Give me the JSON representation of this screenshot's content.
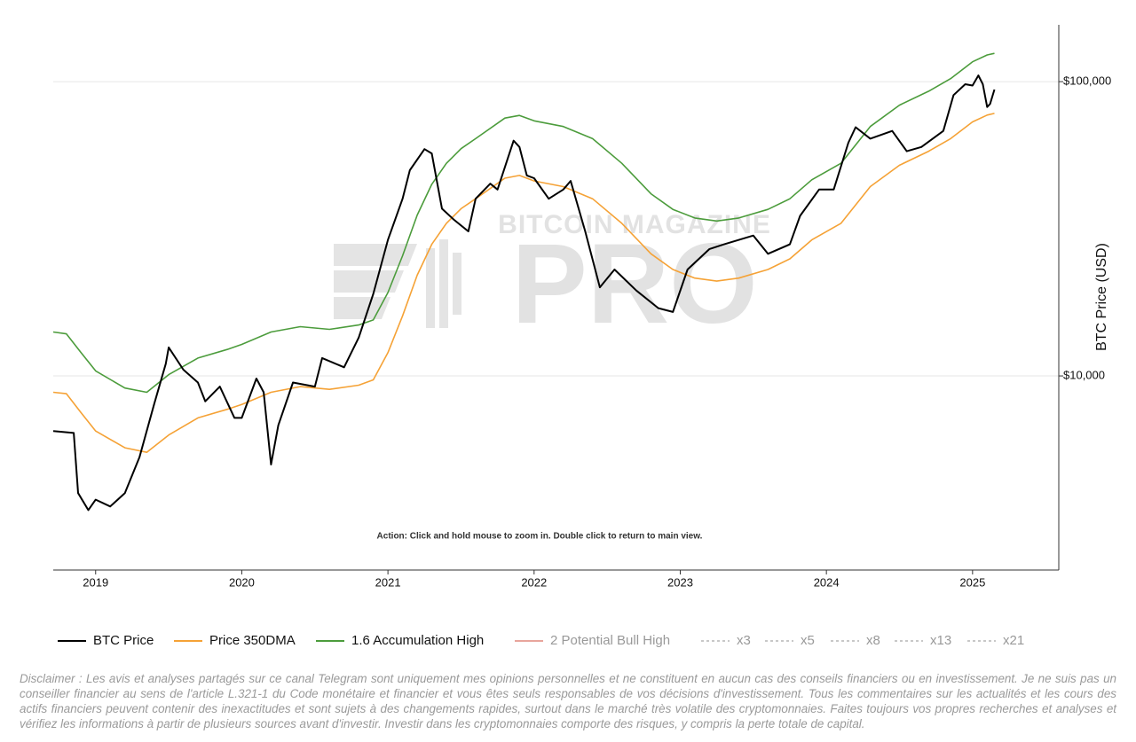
{
  "chart_data": {
    "type": "line",
    "log_scale": true,
    "grid": true,
    "y_label": "BTC Price (USD)",
    "annotation": "Action: Click and hold mouse to zoom in.  Double click to return to main view.",
    "watermark": [
      "BITCOIN MAGAZINE",
      "PRO"
    ],
    "xlim": [
      2018.71,
      2025.59
    ],
    "xticks": [
      2019,
      2020,
      2021,
      2022,
      2023,
      2024,
      2025
    ],
    "ylim": [
      2190,
      156000
    ],
    "yticks": [
      {
        "value": 10000,
        "label": "$10,000"
      },
      {
        "value": 100000,
        "label": "$100,000"
      }
    ],
    "series": [
      {
        "name": "BTC Price",
        "color": "#000000",
        "x": [
          2018.71,
          2018.85,
          2018.88,
          2018.95,
          2019.0,
          2019.1,
          2019.2,
          2019.3,
          2019.4,
          2019.48,
          2019.5,
          2019.6,
          2019.7,
          2019.75,
          2019.85,
          2019.95,
          2020.0,
          2020.1,
          2020.15,
          2020.2,
          2020.25,
          2020.35,
          2020.5,
          2020.55,
          2020.7,
          2020.8,
          2020.9,
          2021.0,
          2021.1,
          2021.15,
          2021.25,
          2021.3,
          2021.37,
          2021.45,
          2021.55,
          2021.6,
          2021.7,
          2021.75,
          2021.86,
          2021.9,
          2021.95,
          2022.0,
          2022.1,
          2022.2,
          2022.25,
          2022.35,
          2022.45,
          2022.55,
          2022.7,
          2022.85,
          2022.95,
          2023.05,
          2023.2,
          2023.3,
          2023.5,
          2023.6,
          2023.75,
          2023.82,
          2023.95,
          2024.05,
          2024.15,
          2024.2,
          2024.3,
          2024.45,
          2024.55,
          2024.65,
          2024.8,
          2024.87,
          2024.95,
          2025.0,
          2025.04,
          2025.07,
          2025.1,
          2025.12,
          2025.15
        ],
        "values": [
          6500,
          6400,
          4000,
          3500,
          3800,
          3600,
          4000,
          5300,
          8000,
          11000,
          12500,
          10500,
          9500,
          8200,
          9200,
          7200,
          7200,
          9800,
          8800,
          5000,
          6800,
          9500,
          9200,
          11500,
          10700,
          13500,
          19000,
          29000,
          40000,
          50000,
          59000,
          57000,
          37000,
          34000,
          31000,
          40000,
          45000,
          43000,
          63000,
          60000,
          48000,
          47000,
          40000,
          43000,
          46000,
          31000,
          20000,
          23000,
          19500,
          17000,
          16500,
          23000,
          27000,
          28000,
          30000,
          26000,
          28000,
          35000,
          43000,
          43000,
          62000,
          70000,
          64000,
          68000,
          58000,
          60000,
          68000,
          90000,
          98000,
          97000,
          105000,
          98000,
          82000,
          84000,
          94000
        ]
      },
      {
        "name": "Price 350DMA",
        "color": "#f5a236",
        "x": [
          2018.71,
          2018.8,
          2018.9,
          2019.0,
          2019.2,
          2019.35,
          2019.5,
          2019.7,
          2019.9,
          2020.0,
          2020.2,
          2020.4,
          2020.6,
          2020.8,
          2020.9,
          2021.0,
          2021.1,
          2021.2,
          2021.3,
          2021.4,
          2021.5,
          2021.6,
          2021.8,
          2021.9,
          2022.0,
          2022.2,
          2022.4,
          2022.6,
          2022.8,
          2022.95,
          2023.1,
          2023.25,
          2023.4,
          2023.6,
          2023.75,
          2023.9,
          2024.1,
          2024.3,
          2024.5,
          2024.7,
          2024.85,
          2025.0,
          2025.1,
          2025.15
        ],
        "values": [
          8800,
          8700,
          7500,
          6500,
          5700,
          5500,
          6300,
          7200,
          7700,
          8000,
          8800,
          9200,
          9000,
          9300,
          9700,
          12000,
          16000,
          22000,
          28000,
          33000,
          37000,
          40000,
          47000,
          48000,
          46000,
          44000,
          40000,
          33000,
          26000,
          23000,
          21500,
          21000,
          21500,
          23000,
          25000,
          29000,
          33000,
          44000,
          52000,
          58000,
          64000,
          73000,
          77000,
          78000
        ]
      },
      {
        "name": "1.6 Accumulation High",
        "color": "#4c9c3c",
        "x": [
          2018.71,
          2018.8,
          2018.9,
          2019.0,
          2019.2,
          2019.35,
          2019.5,
          2019.7,
          2019.9,
          2020.0,
          2020.2,
          2020.4,
          2020.6,
          2020.8,
          2020.9,
          2021.0,
          2021.1,
          2021.2,
          2021.3,
          2021.4,
          2021.5,
          2021.6,
          2021.8,
          2021.9,
          2022.0,
          2022.2,
          2022.4,
          2022.6,
          2022.8,
          2022.95,
          2023.1,
          2023.25,
          2023.4,
          2023.6,
          2023.75,
          2023.9,
          2024.1,
          2024.3,
          2024.5,
          2024.7,
          2024.85,
          2025.0,
          2025.1,
          2025.15
        ],
        "values": [
          14100,
          13900,
          12000,
          10400,
          9100,
          8800,
          10100,
          11500,
          12300,
          12800,
          14100,
          14700,
          14400,
          14900,
          15500,
          19200,
          25600,
          35200,
          44800,
          52800,
          59200,
          64000,
          75200,
          76800,
          73600,
          70400,
          64000,
          52800,
          41600,
          36800,
          34400,
          33600,
          34400,
          36800,
          40000,
          46400,
          52800,
          70400,
          83200,
          92800,
          102400,
          116800,
          123200,
          124800
        ]
      },
      {
        "name": "2 Potential Bull High",
        "color": "#e8a59c",
        "visible": false
      },
      {
        "name": "x3",
        "color": "#c8c8c8",
        "dashed": true,
        "visible": false
      },
      {
        "name": "x5",
        "color": "#c8c8c8",
        "dashed": true,
        "visible": false
      },
      {
        "name": "x8",
        "color": "#c8c8c8",
        "dashed": true,
        "visible": false
      },
      {
        "name": "x13",
        "color": "#c8c8c8",
        "dashed": true,
        "visible": false
      },
      {
        "name": "x21",
        "color": "#c8c8c8",
        "dashed": true,
        "visible": false
      }
    ]
  },
  "disclaimer": "Disclaimer : Les avis et analyses partagés sur ce canal Telegram sont uniquement mes opinions personnelles et ne constituent en aucun cas des conseils financiers ou en investissement. Je ne suis pas un conseiller financier au sens de l'article L.321-1 du Code monétaire et financier et vous êtes seuls responsables de vos décisions d'investissement. Tous les commentaires sur les actualités et les cours des actifs financiers peuvent contenir des inexactitudes et sont sujets à des changements rapides, surtout dans le marché très volatile des cryptomonnaies. Faites toujours vos propres recherches et analyses et vérifiez les informations à partir de plusieurs sources avant d'investir. Investir dans les cryptomonnaies comporte des risques, y compris la perte totale de capital."
}
